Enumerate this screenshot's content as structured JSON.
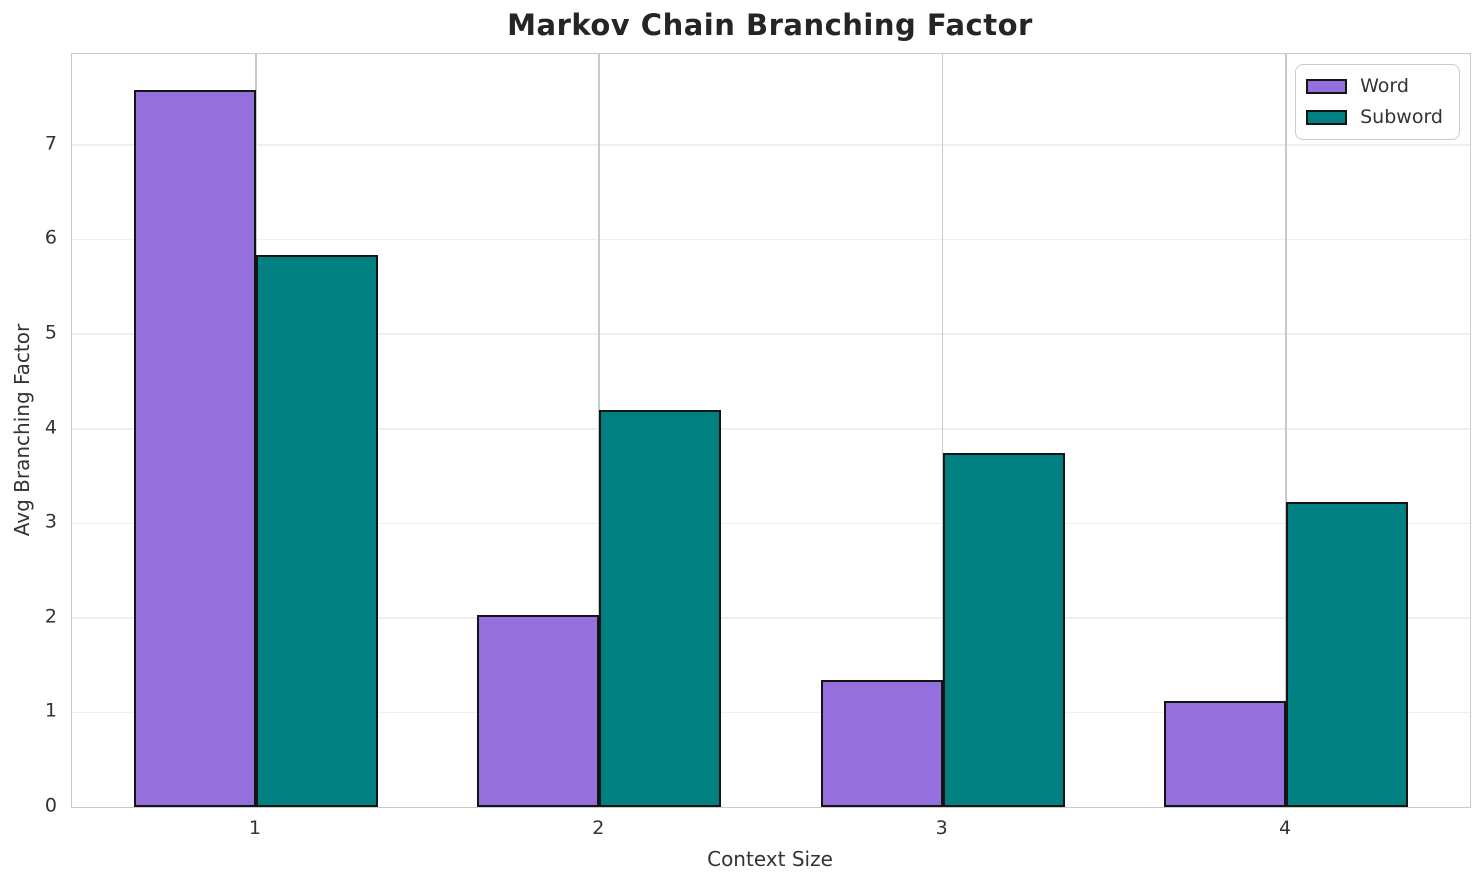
{
  "chart_data": {
    "type": "bar",
    "title": "Markov Chain Branching Factor",
    "xlabel": "Context Size",
    "ylabel": "Avg Branching Factor",
    "categories": [
      "1",
      "2",
      "3",
      "4"
    ],
    "series": [
      {
        "name": "Word",
        "color": "#9370DB",
        "values": [
          7.58,
          2.03,
          1.34,
          1.12
        ]
      },
      {
        "name": "Subword",
        "color": "#008080",
        "values": [
          5.84,
          4.2,
          3.74,
          3.22
        ]
      }
    ],
    "ylim": [
      0,
      7.96
    ],
    "yticks": [
      0,
      1,
      2,
      3,
      4,
      5,
      6,
      7
    ],
    "grid": true,
    "legend_position": "upper right",
    "bar_edge_color": "#141414",
    "background_color": "#ffffff"
  }
}
